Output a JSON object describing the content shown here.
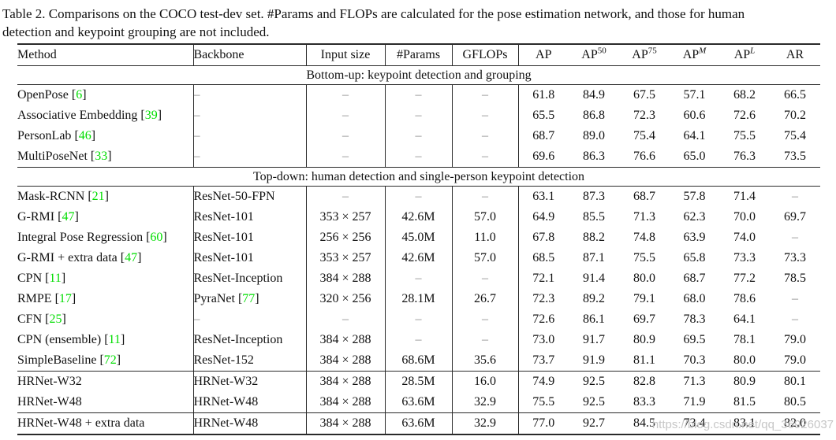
{
  "caption": {
    "line1": "Table 2. Comparisons on the COCO test-dev set. #Params and FLOPs are calculated for the pose estimation network, and those for human",
    "line2": "detection and keypoint grouping are not included."
  },
  "colors": {
    "citation_green": "#00dd00",
    "dash_gray": "#8a8a8a",
    "rule_color": "#2a2a2a",
    "watermark_gray": "#c0c0c0"
  },
  "watermark": {
    "text": "https://blog.csdn.net/qq_36926037"
  },
  "table": {
    "columns": [
      {
        "key": "method",
        "label": "Method",
        "sup": ""
      },
      {
        "key": "backbone",
        "label": "Backbone",
        "sup": ""
      },
      {
        "key": "input-size",
        "label": "Input size",
        "sup": ""
      },
      {
        "key": "params",
        "label": "#Params",
        "sup": ""
      },
      {
        "key": "gflops",
        "label": "GFLOPs",
        "sup": ""
      },
      {
        "key": "ap",
        "label": "AP",
        "sup": ""
      },
      {
        "key": "ap50",
        "label": "AP",
        "sup": "50"
      },
      {
        "key": "ap75",
        "label": "AP",
        "sup": "75"
      },
      {
        "key": "apm",
        "label": "AP",
        "sup": "M",
        "sup_italic": true
      },
      {
        "key": "apl",
        "label": "AP",
        "sup": "L",
        "sup_italic": true
      },
      {
        "key": "ar",
        "label": "AR",
        "sup": ""
      }
    ],
    "sections": [
      {
        "title": "Bottom-up: keypoint detection and grouping",
        "rows": [
          {
            "method": "OpenPose",
            "cite": "6",
            "backbone": "–",
            "input_size": "–",
            "params": "–",
            "gflops": "–",
            "metrics": [
              "61.8",
              "84.9",
              "67.5",
              "57.1",
              "68.2",
              "66.5"
            ]
          },
          {
            "method": "Associative Embedding",
            "cite": "39",
            "backbone": "–",
            "input_size": "–",
            "params": "–",
            "gflops": "–",
            "metrics": [
              "65.5",
              "86.8",
              "72.3",
              "60.6",
              "72.6",
              "70.2"
            ]
          },
          {
            "method": "PersonLab",
            "cite": "46",
            "backbone": "–",
            "input_size": "–",
            "params": "–",
            "gflops": "–",
            "metrics": [
              "68.7",
              "89.0",
              "75.4",
              "64.1",
              "75.5",
              "75.4"
            ]
          },
          {
            "method": "MultiPoseNet",
            "cite": "33",
            "backbone": "–",
            "input_size": "–",
            "params": "–",
            "gflops": "–",
            "metrics": [
              "69.6",
              "86.3",
              "76.6",
              "65.0",
              "76.3",
              "73.5"
            ]
          }
        ]
      },
      {
        "title": "Top-down: human detection and single-person keypoint detection",
        "rows": [
          {
            "method": "Mask-RCNN",
            "cite": "21",
            "backbone": "ResNet-50-FPN",
            "input_size": "–",
            "params": "–",
            "gflops": "–",
            "metrics": [
              "63.1",
              "87.3",
              "68.7",
              "57.8",
              "71.4",
              "–"
            ]
          },
          {
            "method": "G-RMI",
            "cite": "47",
            "backbone": "ResNet-101",
            "input_size": "353 × 257",
            "params": "42.6M",
            "gflops": "57.0",
            "metrics": [
              "64.9",
              "85.5",
              "71.3",
              "62.3",
              "70.0",
              "69.7"
            ]
          },
          {
            "method": "Integral Pose Regression",
            "cite": "60",
            "backbone": "ResNet-101",
            "input_size": "256 × 256",
            "params": "45.0M",
            "gflops": "11.0",
            "metrics": [
              "67.8",
              "88.2",
              "74.8",
              "63.9",
              "74.0",
              "–"
            ]
          },
          {
            "method": "G-RMI + extra data",
            "cite": "47",
            "backbone": "ResNet-101",
            "input_size": "353 × 257",
            "params": "42.6M",
            "gflops": "57.0",
            "metrics": [
              "68.5",
              "87.1",
              "75.5",
              "65.8",
              "73.3",
              "73.3"
            ]
          },
          {
            "method": "CPN",
            "cite": "11",
            "backbone": "ResNet-Inception",
            "input_size": "384 × 288",
            "params": "–",
            "gflops": "–",
            "metrics": [
              "72.1",
              "91.4",
              "80.0",
              "68.7",
              "77.2",
              "78.5"
            ]
          },
          {
            "method": "RMPE",
            "cite": "17",
            "backbone": "PyraNet",
            "backbone_cite": "77",
            "input_size": "320 × 256",
            "params": "28.1M",
            "gflops": "26.7",
            "metrics": [
              "72.3",
              "89.2",
              "79.1",
              "68.0",
              "78.6",
              "–"
            ]
          },
          {
            "method": "CFN",
            "cite": "25",
            "backbone": "–",
            "input_size": "–",
            "params": "–",
            "gflops": "–",
            "metrics": [
              "72.6",
              "86.1",
              "69.7",
              "78.3",
              "64.1",
              "–"
            ]
          },
          {
            "method": "CPN (ensemble)",
            "cite": "11",
            "backbone": "ResNet-Inception",
            "input_size": "384 × 288",
            "params": "–",
            "gflops": "–",
            "metrics": [
              "73.0",
              "91.7",
              "80.9",
              "69.5",
              "78.1",
              "79.0"
            ]
          },
          {
            "method": "SimpleBaseline",
            "cite": "72",
            "backbone": "ResNet-152",
            "input_size": "384 × 288",
            "params": "68.6M",
            "gflops": "35.6",
            "metrics": [
              "73.7",
              "91.9",
              "81.1",
              "70.3",
              "80.0",
              "79.0"
            ]
          },
          {
            "method": "HRNet-W32",
            "cite": null,
            "backbone": "HRNet-W32",
            "input_size": "384 × 288",
            "params": "28.5M",
            "gflops": "16.0",
            "metrics": [
              "74.9",
              "92.5",
              "82.8",
              "71.3",
              "80.9",
              "80.1"
            ],
            "rule_above": true
          },
          {
            "method": "HRNet-W48",
            "cite": null,
            "backbone": "HRNet-W48",
            "input_size": "384 × 288",
            "params": "63.6M",
            "gflops": "32.9",
            "metrics": [
              "75.5",
              "92.5",
              "83.3",
              "71.9",
              "81.5",
              "80.5"
            ],
            "bold": true
          },
          {
            "method": "HRNet-W48 + extra data",
            "cite": null,
            "backbone": "HRNet-W48",
            "input_size": "384 × 288",
            "params": "63.6M",
            "gflops": "32.9",
            "metrics": [
              "77.0",
              "92.7",
              "84.5",
              "73.4",
              "83.1",
              "82.0"
            ],
            "bold": true,
            "rule_above": true
          }
        ]
      }
    ]
  }
}
